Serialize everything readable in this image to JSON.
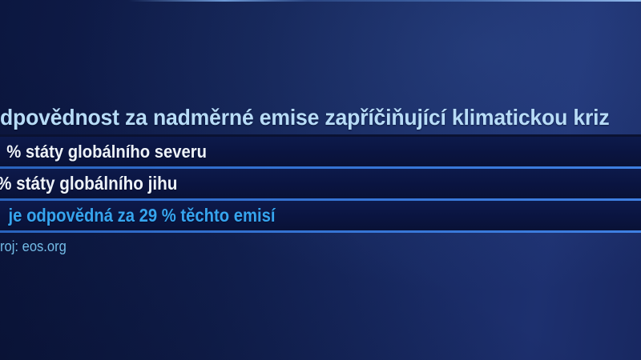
{
  "headline": {
    "text": "dpovědnost za nadměrné emise zapříčiňující klimatickou kriz"
  },
  "rows": [
    {
      "text": "% státy globálního severu",
      "style": "white"
    },
    {
      "text": "% státy globálního jihu",
      "style": "white"
    },
    {
      "text": "je odpovědná za 29 % těchto emisí",
      "style": "highlight"
    }
  ],
  "source": {
    "text": "roj: eos.org"
  },
  "facts": {
    "highlight_percentage": "29 %"
  },
  "colors": {
    "background_dark": "#0c1740",
    "background_light": "#1d306f",
    "band_background": "#0a1440",
    "separator_line": "#3371d0",
    "headline_text": "#b7dcf7",
    "row_text": "#eef3f9",
    "highlight_text": "#36a5ee",
    "source_text": "#74bce7",
    "top_edge_highlight": "#96c0f2"
  }
}
